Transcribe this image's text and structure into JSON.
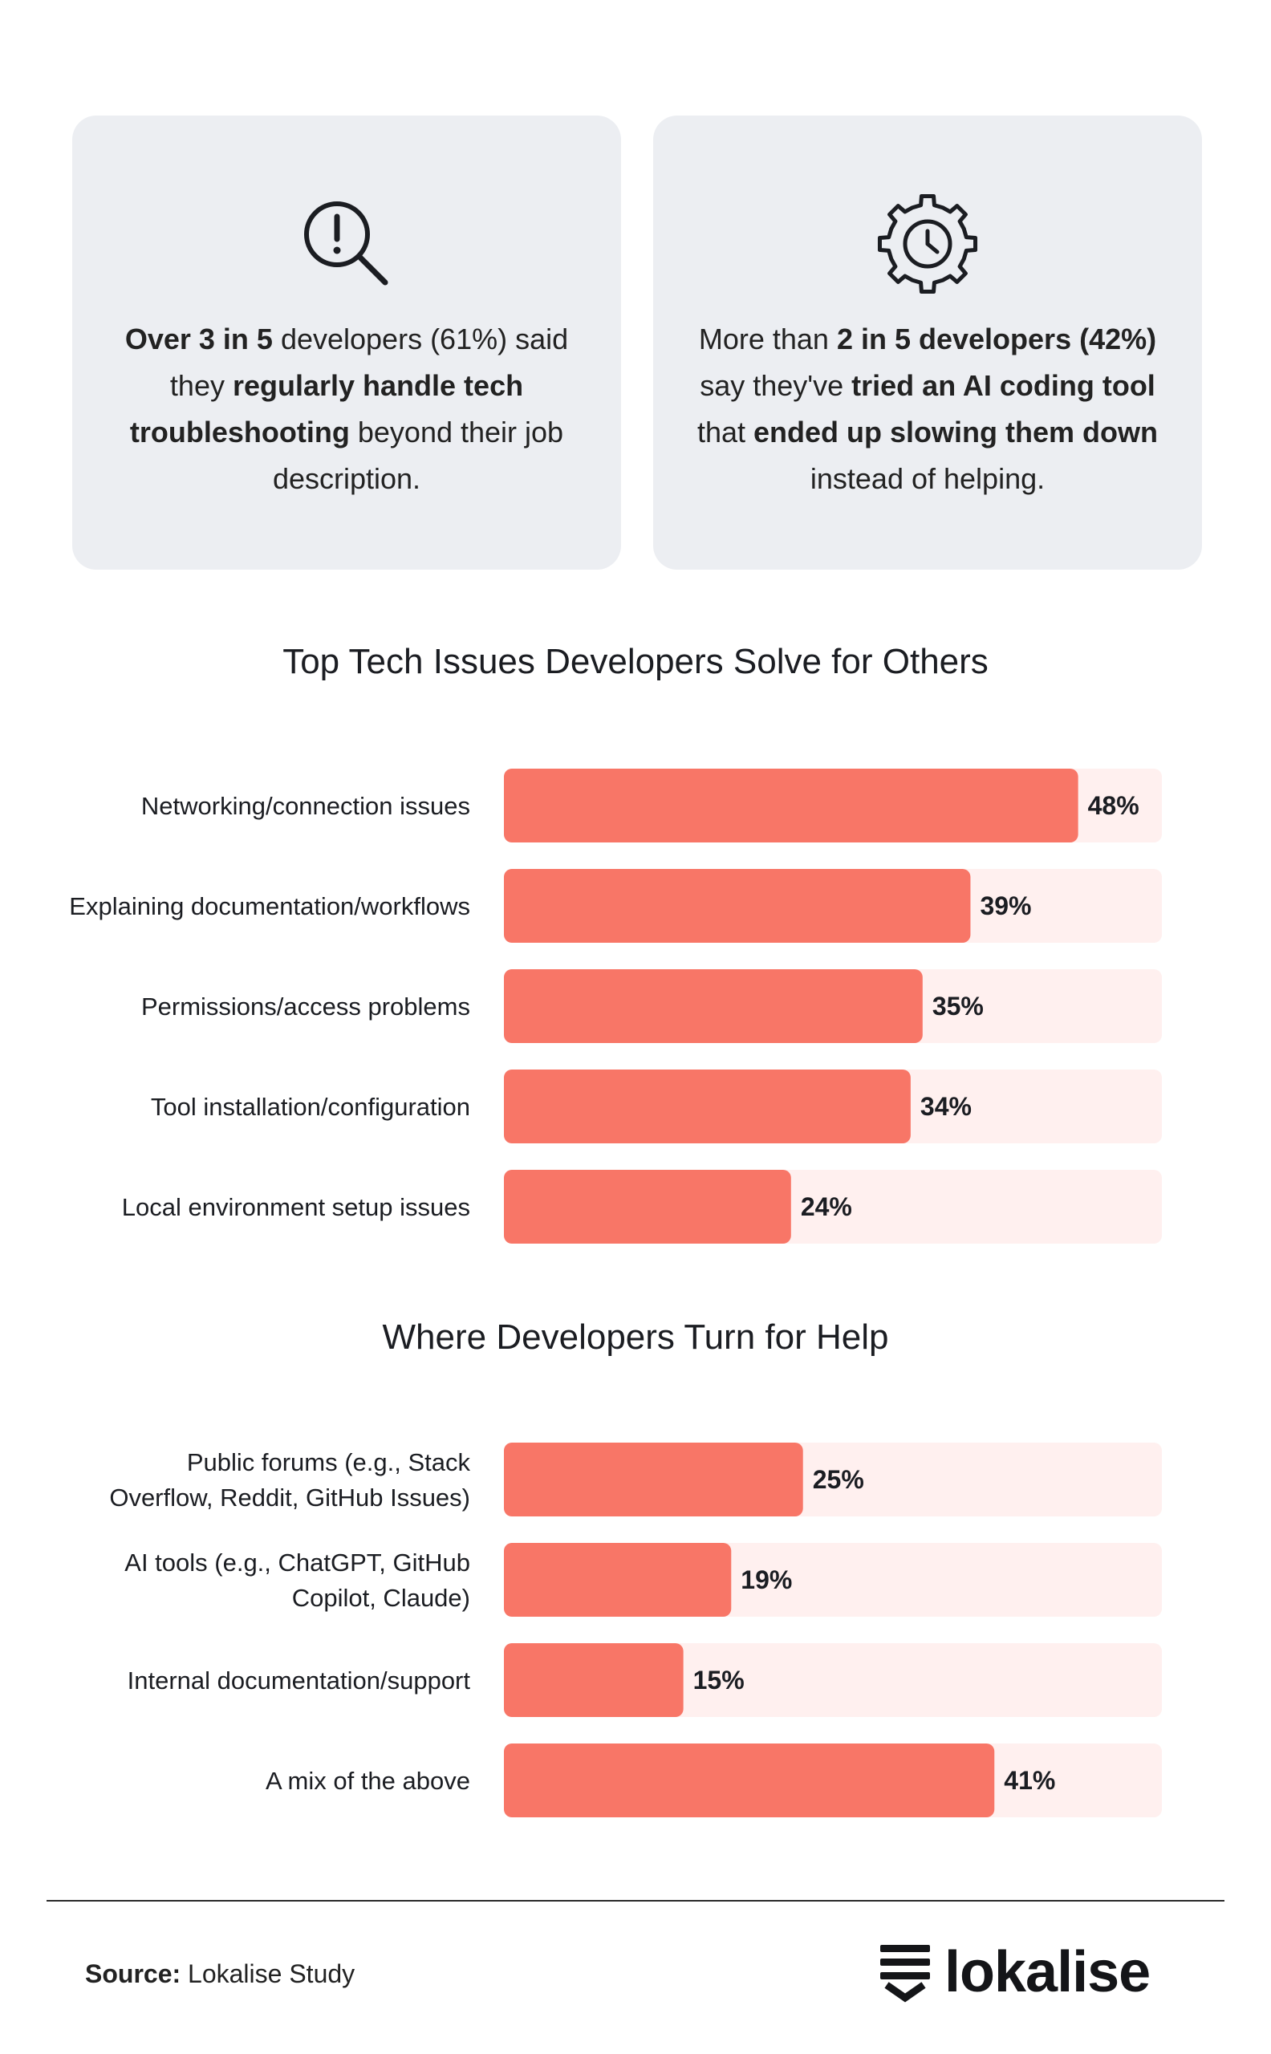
{
  "cards": [
    {
      "icon": "magnifier-alert-icon",
      "parts": [
        {
          "text": "Over 3 in 5",
          "bold": true
        },
        {
          "text": " developers (61%) said they ",
          "bold": false
        },
        {
          "text": "regularly handle tech troubleshooting",
          "bold": true
        },
        {
          "text": " beyond their job description.",
          "bold": false
        }
      ]
    },
    {
      "icon": "gear-clock-icon",
      "parts": [
        {
          "text": "More than ",
          "bold": false
        },
        {
          "text": "2 in 5 developers (42%)",
          "bold": true
        },
        {
          "text": " say they've ",
          "bold": false
        },
        {
          "text": "tried an AI coding tool",
          "bold": true
        },
        {
          "text": " that ",
          "bold": false
        },
        {
          "text": "ended up slowing them down",
          "bold": true
        },
        {
          "text": " instead of helping.",
          "bold": false
        }
      ]
    }
  ],
  "chart_data": [
    {
      "type": "bar",
      "orientation": "horizontal",
      "title": "Top Tech Issues Developers Solve for Others",
      "categories": [
        [
          "Networking/connection issues"
        ],
        [
          "Explaining documentation/workflows"
        ],
        [
          "Permissions/access problems"
        ],
        [
          "Tool installation/configuration"
        ],
        [
          "Local environment setup issues"
        ]
      ],
      "values": [
        48,
        39,
        35,
        34,
        24
      ],
      "labels": [
        "48%",
        "39%",
        "35%",
        "34%",
        "24%"
      ],
      "unit": "%",
      "xlim": [
        0,
        55
      ],
      "colors": {
        "bar": "#f87667",
        "track": "#fff0ef",
        "text": "#1b1d22"
      }
    },
    {
      "type": "bar",
      "orientation": "horizontal",
      "title": "Where Developers Turn for Help",
      "categories": [
        [
          "Public forums (e.g., Stack",
          "Overflow, Reddit, GitHub Issues)"
        ],
        [
          "AI tools (e.g., ChatGPT, GitHub",
          "Copilot, Claude)"
        ],
        [
          "Internal documentation/support"
        ],
        [
          "A mix of the above"
        ]
      ],
      "values": [
        25,
        19,
        15,
        41
      ],
      "labels": [
        "25%",
        "19%",
        "15%",
        "41%"
      ],
      "unit": "%",
      "xlim": [
        0,
        55
      ],
      "colors": {
        "bar": "#f87667",
        "track": "#fff0ef",
        "text": "#1b1d22"
      }
    }
  ],
  "footer": {
    "source_label": "Source:",
    "source_text": "Lokalise Study",
    "brand": "lokalise",
    "brand_icon": "lokalise-logo-icon"
  }
}
